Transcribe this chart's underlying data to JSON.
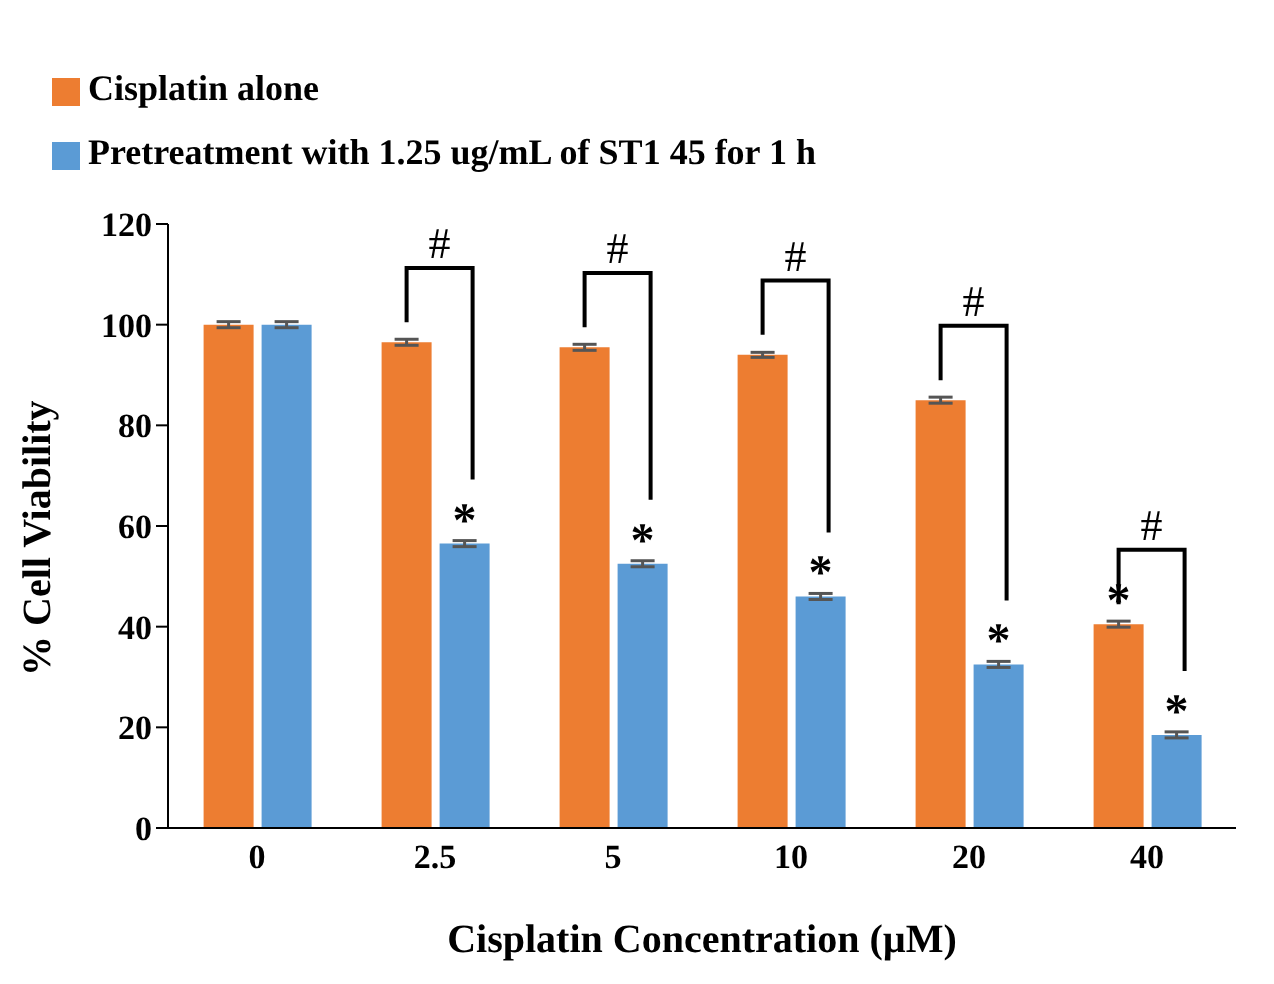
{
  "chart_data": {
    "type": "bar",
    "xlabel": "Cisplatin Concentration (µM)",
    "ylabel": "% Cell Viability",
    "categories": [
      "0",
      "2.5",
      "5",
      "10",
      "20",
      "40"
    ],
    "series": [
      {
        "name": "Cisplatin alone",
        "color": "#ed7d31",
        "values": [
          100,
          96.5,
          95.5,
          94,
          85,
          40.5
        ],
        "errors": [
          0.6,
          0.6,
          0.6,
          0.5,
          0.6,
          0.6
        ]
      },
      {
        "name": "Pretreatment with 1.25 ug/mL of ST1 45 for 1 h",
        "color": "#5b9bd5",
        "values": [
          100,
          56.5,
          52.5,
          46,
          32.5,
          18.5
        ],
        "errors": [
          0.6,
          0.6,
          0.6,
          0.6,
          0.6,
          0.6
        ]
      }
    ],
    "ylim": [
      0,
      120
    ],
    "yticks": [
      0,
      20,
      40,
      60,
      80,
      100,
      120
    ],
    "grid": false,
    "legend": "top left",
    "annotations": [
      "#",
      "#",
      "#",
      "#",
      "#",
      {
        "text": "*",
        "x": "2.5",
        "y": 56.5
      },
      {
        "text": "*",
        "x": "5",
        "y": 52.5
      },
      {
        "text": "*",
        "x": "10",
        "y": 46
      },
      {
        "text": "*",
        "x": "20",
        "y": 32.5
      },
      {
        "text": "*",
        "x": "40",
        "y": 40.5
      },
      {
        "text": "*",
        "x": "40",
        "y": 18.5
      }
    ]
  }
}
